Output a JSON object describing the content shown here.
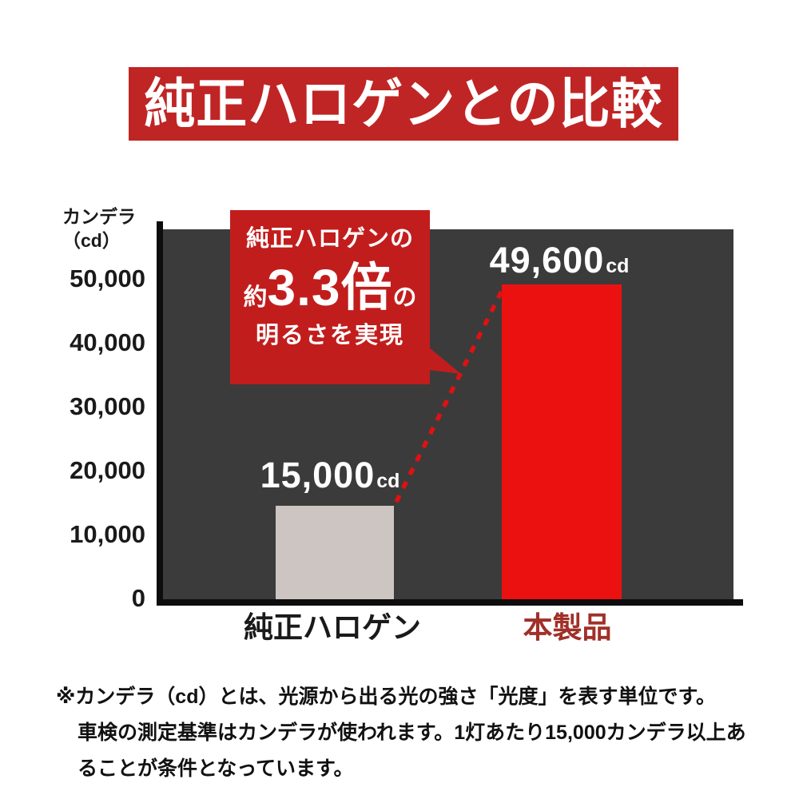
{
  "header": {
    "title": "純正ハロゲンとの比較"
  },
  "chart_data": {
    "type": "bar",
    "title": "純正ハロゲンとの比較",
    "ylabel": "カンデラ（cd）",
    "ylabel_line1": "カンデラ",
    "ylabel_line2": "（cd）",
    "categories": [
      "純正ハロゲン",
      "本製品"
    ],
    "values": [
      15000,
      49600
    ],
    "value_labels": [
      {
        "number": "15,000",
        "unit": "cd"
      },
      {
        "number": "49,600",
        "unit": "cd"
      }
    ],
    "yticks": [
      "50,000",
      "40,000",
      "30,000",
      "20,000",
      "10,000",
      "0"
    ],
    "ytick_values": [
      50000,
      40000,
      30000,
      20000,
      10000,
      0
    ],
    "ylim": [
      0,
      58000
    ],
    "grid": false,
    "legend": false,
    "bar_colors": [
      "#ccc5c2",
      "#ec1111"
    ],
    "category_label_colors": [
      "#1a1a1a",
      "#a03028"
    ],
    "annotation": "純正ハロゲンの約3.3倍の明るさを実現"
  },
  "callout": {
    "line1": "純正ハロゲンの",
    "mult_prefix": "約",
    "mult_big": "3.3倍",
    "mult_suffix": "の",
    "line3": "明るさを実現"
  },
  "footnote": {
    "line1": "※カンデラ（cd）とは、光源から出る光の強さ「光度」を表す単位です。",
    "line2": "車検の測定基準はカンデラが使われます。1灯あたり15,000カンデラ以上あ",
    "line3": "ることが条件となっています。"
  },
  "colors": {
    "page_bg": "#ffffff",
    "header_bg": "#c02525",
    "header_text": "#ffffff",
    "callout_bg": "#c21d1d",
    "callout_text": "#ffffff",
    "plot_bg": "#3b3b3b",
    "axis": "#0d0d0d",
    "connector": "#e01111",
    "bar_halogen": "#ccc5c2",
    "bar_product": "#ec1111",
    "product_label": "#a03028"
  }
}
